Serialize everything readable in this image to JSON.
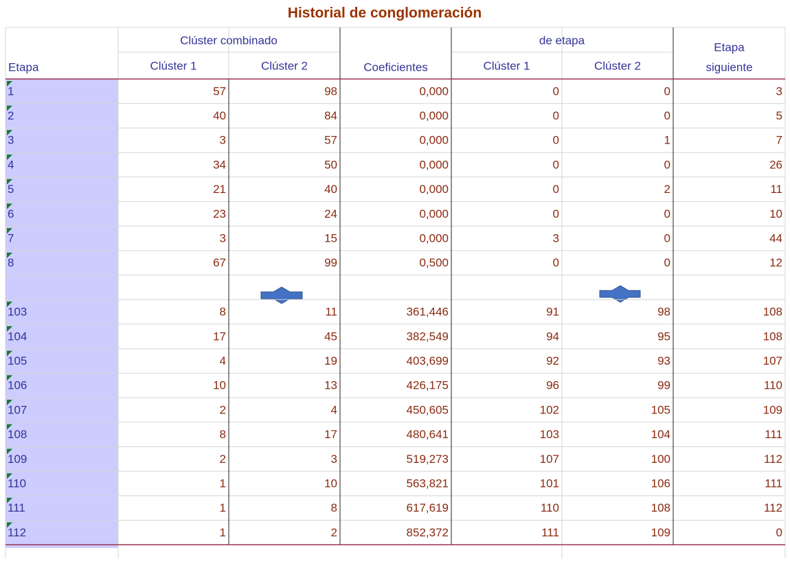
{
  "header": {
    "title": "Historial de conglomeración"
  },
  "table": {
    "groups": [
      "Clúster combinado",
      "de etapa"
    ],
    "columns": [
      "Etapa",
      "Clúster 1",
      "Clúster 2",
      "Coeficientes",
      "Clúster 1",
      "Clúster 2",
      [
        "Etapa",
        "siguiente"
      ]
    ],
    "rows": [
      [
        "1",
        57,
        98,
        "0,000",
        0,
        0,
        3
      ],
      [
        "2",
        40,
        84,
        "0,000",
        0,
        0,
        5
      ],
      [
        "3",
        3,
        57,
        "0,000",
        0,
        1,
        7
      ],
      [
        "4",
        34,
        50,
        "0,000",
        0,
        0,
        26
      ],
      [
        "5",
        21,
        40,
        "0,000",
        0,
        2,
        11
      ],
      [
        "6",
        23,
        24,
        "0,000",
        0,
        0,
        10
      ],
      [
        "7",
        3,
        15,
        "0,000",
        3,
        0,
        44
      ],
      [
        "8",
        67,
        99,
        "0,500",
        0,
        0,
        12
      ],
      [
        "103",
        8,
        11,
        "361,446",
        91,
        98,
        108
      ],
      [
        "104",
        17,
        45,
        "382,549",
        94,
        95,
        108
      ],
      [
        "105",
        4,
        19,
        "403,699",
        92,
        93,
        107
      ],
      [
        "106",
        10,
        13,
        "426,175",
        96,
        99,
        110
      ],
      [
        "107",
        2,
        4,
        "450,605",
        102,
        105,
        109
      ],
      [
        "108",
        8,
        17,
        "480,641",
        103,
        104,
        111
      ],
      [
        "109",
        2,
        3,
        "519,273",
        107,
        100,
        112
      ],
      [
        "110",
        1,
        10,
        "563,821",
        101,
        106,
        111
      ],
      [
        "111",
        1,
        8,
        "617,619",
        110,
        108,
        112
      ],
      [
        "112",
        1,
        2,
        "852,372",
        111,
        109,
        0
      ]
    ]
  }
}
